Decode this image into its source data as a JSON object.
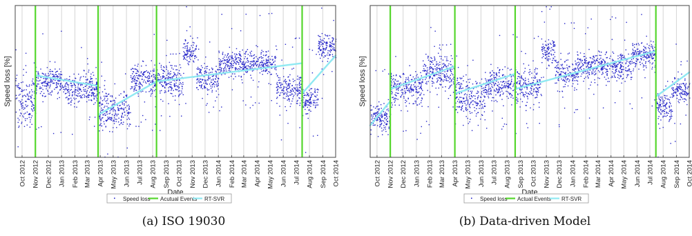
{
  "captions": [
    "(a) ISO 19030",
    "(b) Data-driven Model"
  ],
  "chart_data": [
    {
      "type": "scatter",
      "subtitle": "(a) ISO 19030",
      "xlabel": "Date",
      "ylabel": "Speed loss [%]",
      "xlim": [
        "2012-09-15",
        "2014-10-01"
      ],
      "x_ticks": [
        "Oct 2012",
        "Nov 2012",
        "Dec 2012",
        "Jan 2013",
        "Feb 2013",
        "Mar 2013",
        "Apr 2013",
        "May 2013",
        "Jun 2013",
        "Jul 2013",
        "Aug 2013",
        "Sep 2013",
        "Oct 2013",
        "Nov 2013",
        "Dec 2013",
        "Jan 2014",
        "Feb 2014",
        "Mar 2014",
        "Apr 2014",
        "May 2014",
        "Jun 2014",
        "Jul 2014",
        "Aug 2014",
        "Sep 2014",
        "Oct 2014"
      ],
      "y_ticks_shown": false,
      "grid": "vertical",
      "legend_position": "bottom",
      "legend": [
        "Speed loss",
        "Acutual Events",
        "RT-SVR"
      ],
      "colors": {
        "speed_loss": "#2323c8",
        "events": "#54d62c",
        "rt_svr": "#8fe9f2"
      },
      "events": [
        "2012-11-01",
        "2013-03-27",
        "2013-08-10",
        "2014-07-15"
      ],
      "speed_loss_clusters": [
        {
          "start": "2012-09-15",
          "end": "2012-11-01",
          "mean": 0.63,
          "spread": 0.16
        },
        {
          "start": "2012-11-01",
          "end": "2013-01-01",
          "mean": 0.5,
          "spread": 0.09
        },
        {
          "start": "2013-01-01",
          "end": "2013-03-27",
          "mean": 0.54,
          "spread": 0.1
        },
        {
          "start": "2013-03-27",
          "end": "2013-06-10",
          "mean": 0.69,
          "spread": 0.12
        },
        {
          "start": "2013-06-10",
          "end": "2013-08-10",
          "mean": 0.49,
          "spread": 0.1
        },
        {
          "start": "2013-08-10",
          "end": "2013-10-10",
          "mean": 0.5,
          "spread": 0.12
        },
        {
          "start": "2013-10-10",
          "end": "2013-11-10",
          "mean": 0.3,
          "spread": 0.08
        },
        {
          "start": "2013-11-10",
          "end": "2014-01-01",
          "mean": 0.48,
          "spread": 0.09
        },
        {
          "start": "2014-01-01",
          "end": "2014-05-15",
          "mean": 0.38,
          "spread": 0.08
        },
        {
          "start": "2014-05-15",
          "end": "2014-07-15",
          "mean": 0.55,
          "spread": 0.1
        },
        {
          "start": "2014-07-15",
          "end": "2014-08-20",
          "mean": 0.62,
          "spread": 0.08
        },
        {
          "start": "2014-08-20",
          "end": "2014-10-01",
          "mean": 0.27,
          "spread": 0.07
        }
      ],
      "rt_svr_segments": [
        {
          "x": [
            "2012-11-01",
            "2013-03-27"
          ],
          "y": [
            0.46,
            0.53
          ]
        },
        {
          "x": [
            "2013-03-27",
            "2013-08-10"
          ],
          "y": [
            0.72,
            0.5
          ]
        },
        {
          "x": [
            "2013-08-10",
            "2014-07-15"
          ],
          "y": [
            0.5,
            0.38
          ]
        },
        {
          "x": [
            "2014-07-15",
            "2014-10-01"
          ],
          "y": [
            0.58,
            0.33
          ]
        }
      ]
    },
    {
      "type": "scatter",
      "subtitle": "(b) Data-driven Model",
      "xlabel": "Date",
      "ylabel": "Speed loss [%]",
      "xlim": [
        "2012-09-15",
        "2014-10-01"
      ],
      "x_ticks": [
        "Oct 2012",
        "Nov 2012",
        "Dec 2012",
        "Jan 2013",
        "Feb 2013",
        "Mar 2013",
        "Apr 2013",
        "May 2013",
        "Jun 2013",
        "Jul 2013",
        "Aug 2013",
        "Sep 2013",
        "Oct 2013",
        "Nov 2013",
        "Dec 2013",
        "Jan 2014",
        "Feb 2014",
        "Mar 2014",
        "Apr 2014",
        "May 2014",
        "Jun 2014",
        "Jul 2014",
        "Aug 2014",
        "Sep 2014",
        "Oct 2014"
      ],
      "y_ticks_shown": false,
      "grid": "vertical",
      "legend_position": "bottom",
      "legend": [
        "Speed loss",
        "Actual Events",
        "RT-SVR"
      ],
      "colors": {
        "speed_loss": "#2323c8",
        "events": "#54d62c",
        "rt_svr": "#8fe9f2"
      },
      "events": [
        "2012-11-01",
        "2013-04-01",
        "2013-08-20",
        "2014-07-15"
      ],
      "speed_loss_clusters": [
        {
          "start": "2012-09-15",
          "end": "2012-11-01",
          "mean": 0.74,
          "spread": 0.1
        },
        {
          "start": "2012-11-01",
          "end": "2013-01-15",
          "mean": 0.55,
          "spread": 0.12
        },
        {
          "start": "2013-01-15",
          "end": "2013-04-01",
          "mean": 0.44,
          "spread": 0.12
        },
        {
          "start": "2013-04-01",
          "end": "2013-06-10",
          "mean": 0.6,
          "spread": 0.13
        },
        {
          "start": "2013-06-10",
          "end": "2013-08-20",
          "mean": 0.52,
          "spread": 0.1
        },
        {
          "start": "2013-08-20",
          "end": "2013-10-20",
          "mean": 0.53,
          "spread": 0.12
        },
        {
          "start": "2013-10-20",
          "end": "2013-11-20",
          "mean": 0.3,
          "spread": 0.08
        },
        {
          "start": "2013-11-20",
          "end": "2014-01-10",
          "mean": 0.45,
          "spread": 0.1
        },
        {
          "start": "2014-01-10",
          "end": "2014-05-20",
          "mean": 0.4,
          "spread": 0.09
        },
        {
          "start": "2014-05-20",
          "end": "2014-07-15",
          "mean": 0.33,
          "spread": 0.1
        },
        {
          "start": "2014-07-15",
          "end": "2014-08-20",
          "mean": 0.68,
          "spread": 0.1
        },
        {
          "start": "2014-08-20",
          "end": "2014-10-01",
          "mean": 0.55,
          "spread": 0.08
        }
      ],
      "rt_svr_segments": [
        {
          "x": [
            "2012-09-15",
            "2012-11-01"
          ],
          "y": [
            0.79,
            0.63
          ]
        },
        {
          "x": [
            "2012-11-01",
            "2013-04-01"
          ],
          "y": [
            0.55,
            0.4
          ]
        },
        {
          "x": [
            "2013-04-01",
            "2013-08-20"
          ],
          "y": [
            0.58,
            0.45
          ]
        },
        {
          "x": [
            "2013-08-20",
            "2014-07-15"
          ],
          "y": [
            0.55,
            0.3
          ]
        },
        {
          "x": [
            "2014-07-15",
            "2014-10-01"
          ],
          "y": [
            0.6,
            0.44
          ]
        }
      ]
    }
  ]
}
